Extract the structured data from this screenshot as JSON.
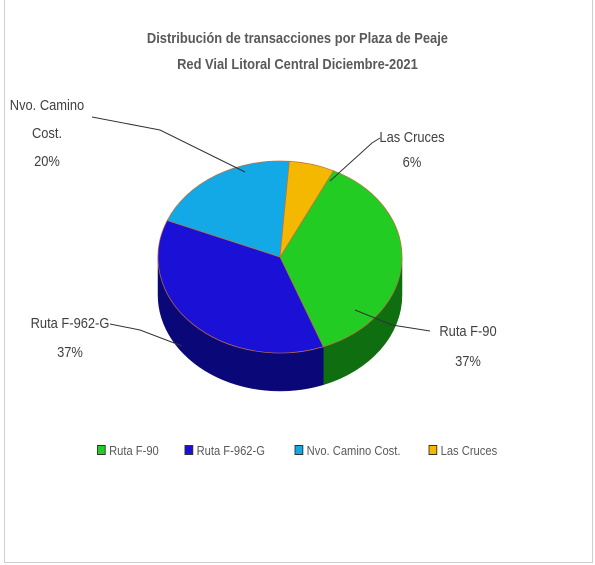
{
  "chart_data": {
    "type": "pie",
    "title": "Distribución de transacciones por Plaza de Peaje",
    "subtitle": "Red Vial Litoral Central Diciembre-2021",
    "slices": [
      {
        "label": "Ruta F-90",
        "label_lines": [
          "Ruta F-90",
          "37%"
        ],
        "value": 37,
        "color": "#22cc22",
        "side_color": "#0f6e0f"
      },
      {
        "label": "Ruta F-962-G",
        "label_lines": [
          "Ruta F-962-G",
          "37%"
        ],
        "value": 37,
        "color": "#1a10d6",
        "side_color": "#0a0778"
      },
      {
        "label": "Nvo. Camino Cost.",
        "label_lines": [
          "Nvo. Camino",
          "Cost.",
          "20%"
        ],
        "value": 20,
        "color": "#12a9e6",
        "side_color": "#0b6a91"
      },
      {
        "label": "Las Cruces",
        "label_lines": [
          "Las Cruces",
          "6%"
        ],
        "value": 6,
        "color": "#f5b800",
        "side_color": "#a67b00"
      }
    ],
    "legend_position": "bottom"
  }
}
